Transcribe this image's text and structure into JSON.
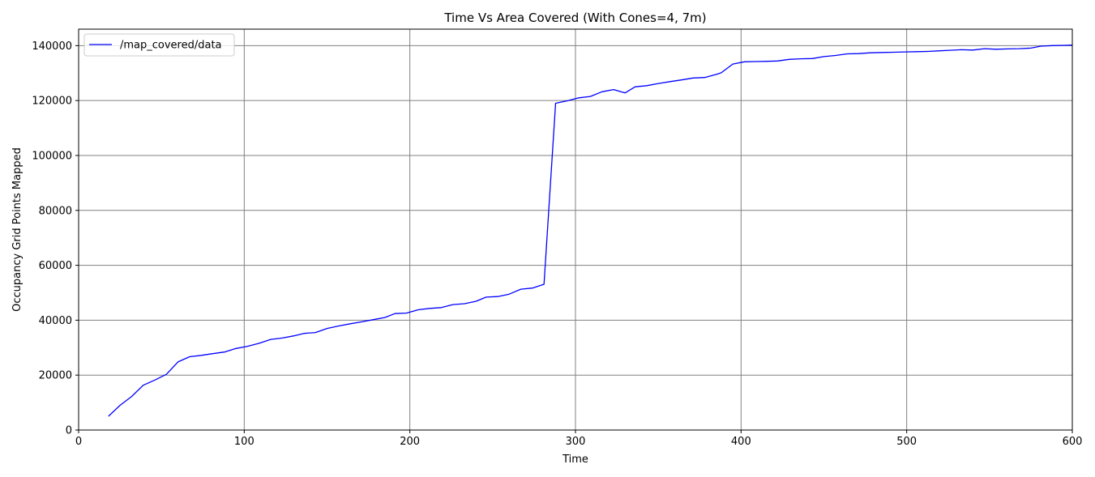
{
  "chart_data": {
    "type": "line",
    "title": "Time Vs Area Covered (With Cones=4, 7m)",
    "xlabel": "Time",
    "ylabel": "Occupancy Grid Points Mapped",
    "xlim": [
      0,
      600
    ],
    "ylim": [
      0,
      146000
    ],
    "xticks": [
      0,
      100,
      200,
      300,
      400,
      500,
      600
    ],
    "yticks": [
      0,
      20000,
      40000,
      60000,
      80000,
      100000,
      120000,
      140000
    ],
    "grid": true,
    "legend_position": "top-left",
    "series": [
      {
        "name": "/map_covered/data",
        "color": "#0000ff",
        "points": [
          [
            18,
            5000
          ],
          [
            25,
            9000
          ],
          [
            32,
            12200
          ],
          [
            39,
            16300
          ],
          [
            46,
            18200
          ],
          [
            53,
            20300
          ],
          [
            60,
            24800
          ],
          [
            67,
            26700
          ],
          [
            74,
            27200
          ],
          [
            81,
            27800
          ],
          [
            88,
            28400
          ],
          [
            95,
            29700
          ],
          [
            102,
            30500
          ],
          [
            109,
            31600
          ],
          [
            116,
            33000
          ],
          [
            123,
            33500
          ],
          [
            130,
            34300
          ],
          [
            136,
            35200
          ],
          [
            143,
            35500
          ],
          [
            150,
            37000
          ],
          [
            157,
            37900
          ],
          [
            164,
            38700
          ],
          [
            171,
            39400
          ],
          [
            178,
            40200
          ],
          [
            185,
            41000
          ],
          [
            191,
            42400
          ],
          [
            198,
            42600
          ],
          [
            205,
            43800
          ],
          [
            212,
            44300
          ],
          [
            219,
            44600
          ],
          [
            226,
            45700
          ],
          [
            233,
            46000
          ],
          [
            240,
            46900
          ],
          [
            246,
            48400
          ],
          [
            253,
            48600
          ],
          [
            260,
            49500
          ],
          [
            267,
            51300
          ],
          [
            274,
            51700
          ],
          [
            281,
            53100
          ],
          [
            288,
            119000
          ],
          [
            295,
            119900
          ],
          [
            302,
            121000
          ],
          [
            309,
            121500
          ],
          [
            316,
            123200
          ],
          [
            323,
            124000
          ],
          [
            330,
            122800
          ],
          [
            336,
            125000
          ],
          [
            343,
            125400
          ],
          [
            350,
            126200
          ],
          [
            357,
            126900
          ],
          [
            364,
            127500
          ],
          [
            371,
            128200
          ],
          [
            378,
            128400
          ],
          [
            385,
            129500
          ],
          [
            388,
            130100
          ],
          [
            395,
            133300
          ],
          [
            402,
            134100
          ],
          [
            409,
            134200
          ],
          [
            416,
            134300
          ],
          [
            422,
            134400
          ],
          [
            429,
            135000
          ],
          [
            436,
            135200
          ],
          [
            443,
            135300
          ],
          [
            450,
            136000
          ],
          [
            457,
            136400
          ],
          [
            464,
            137000
          ],
          [
            471,
            137100
          ],
          [
            478,
            137400
          ],
          [
            485,
            137500
          ],
          [
            492,
            137600
          ],
          [
            499,
            137700
          ],
          [
            506,
            137800
          ],
          [
            513,
            137900
          ],
          [
            519,
            138100
          ],
          [
            526,
            138300
          ],
          [
            533,
            138500
          ],
          [
            540,
            138400
          ],
          [
            547,
            138900
          ],
          [
            554,
            138700
          ],
          [
            561,
            138800
          ],
          [
            568,
            138900
          ],
          [
            575,
            139100
          ],
          [
            581,
            139800
          ],
          [
            588,
            140000
          ],
          [
            595,
            140100
          ],
          [
            600,
            140200
          ]
        ]
      }
    ]
  }
}
